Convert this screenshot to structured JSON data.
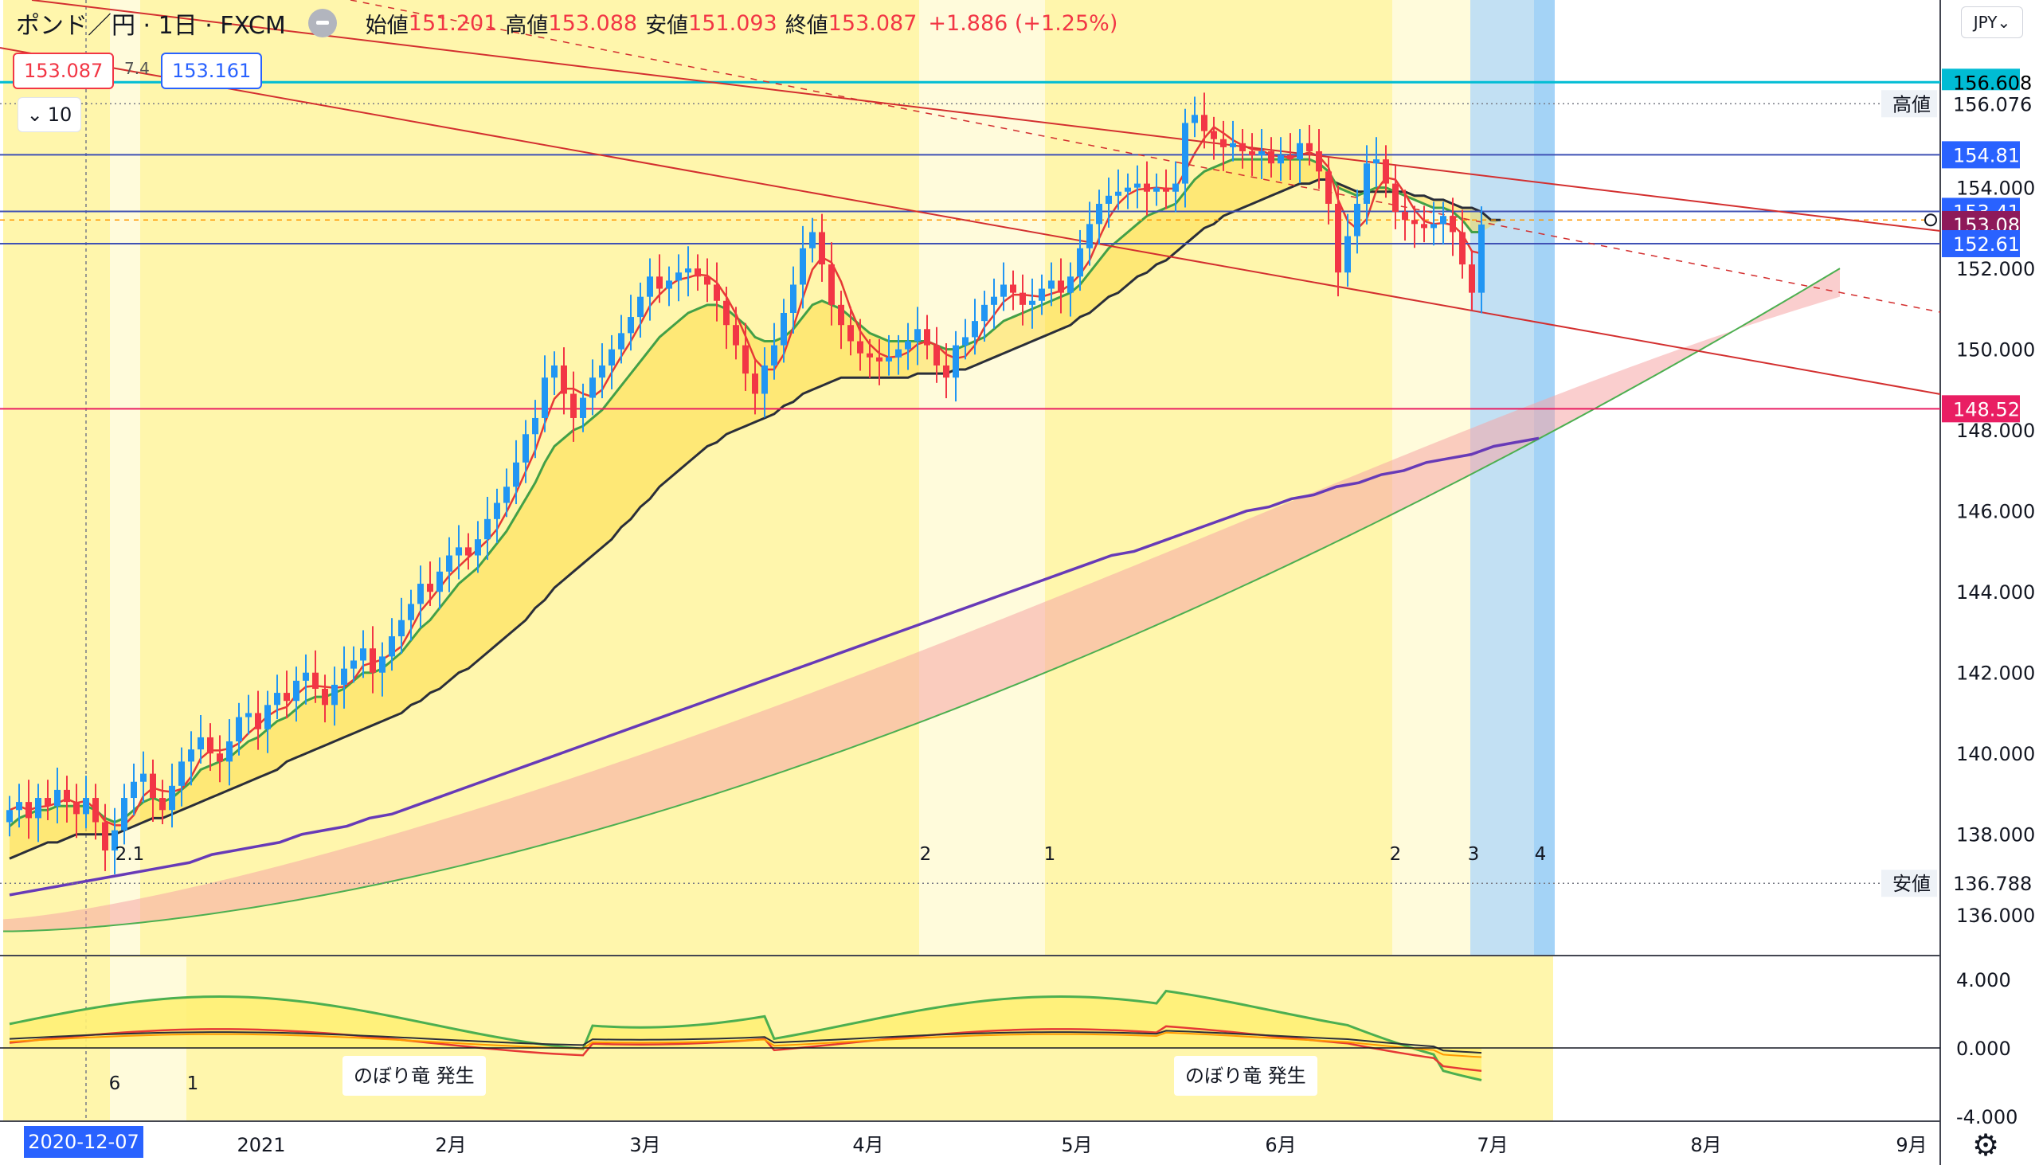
{
  "header": {
    "symbol": "ポンド／円 · 1日 · FXCM",
    "open_label": "始値",
    "open": "151.201",
    "high_label": "高値",
    "high": "153.088",
    "low_label": "安値",
    "low": "151.093",
    "close_label": "終値",
    "close": "153.087",
    "change": "+1.886 (+1.25%)"
  },
  "trade": {
    "sell": "153.087",
    "spread": "7.4",
    "buy": "153.161"
  },
  "collapse_label": "10",
  "currency": "JPY",
  "crosshair_date": "2020-12-07",
  "notes": [
    "のぼり竜 発生",
    "のぼり竜 発生"
  ],
  "colors": {
    "up": "#2196f3",
    "down": "#f23645",
    "bg_yellow": "#fff59d",
    "bg_blue": "#bbdefb",
    "sma_dark": "#2a2e39",
    "sma_purple": "#673ab7",
    "cloud": "#f6a6a6"
  },
  "chart_data": {
    "type": "line",
    "price_scale": {
      "range": [
        135.0,
        157.5
      ],
      "ticks": [
        136,
        138,
        140,
        142,
        144,
        146,
        148,
        150,
        152,
        154
      ]
    },
    "x_axis": {
      "start": "2020-12",
      "end": "2021-09",
      "labels": [
        "2021",
        "2月",
        "3月",
        "4月",
        "5月",
        "6月",
        "7月",
        "8月",
        "9月"
      ]
    },
    "oscillator_scale": {
      "ticks": [
        "4.000",
        "0.000",
        "-4.000"
      ]
    },
    "price_labels": [
      {
        "value": 156.608,
        "text": "156.608",
        "color": "#00bcd4",
        "text_color": "#000000"
      },
      {
        "value": 156.076,
        "text": "156.076",
        "tag": "高値",
        "color": "#ffffff",
        "text_color": "#131722"
      },
      {
        "value": 154.813,
        "text": "154.813",
        "color": "#2962ff",
        "text_color": "#ffffff"
      },
      {
        "value": 153.413,
        "text": "153.413",
        "color": "#2962ff",
        "text_color": "#ffffff"
      },
      {
        "value": 153.087,
        "text": "153.087",
        "color": "#8e1a5a",
        "text_color": "#ffffff"
      },
      {
        "value": 152.614,
        "text": "152.614",
        "color": "#2962ff",
        "text_color": "#ffffff"
      },
      {
        "value": 148.529,
        "text": "148.529",
        "color": "#e91e63",
        "text_color": "#ffffff"
      },
      {
        "value": 136.788,
        "text": "136.788",
        "tag": "安値",
        "color": "#ffffff",
        "text_color": "#131722"
      }
    ],
    "horizontal_lines": [
      {
        "value": 156.608,
        "color": "#00bcd4",
        "width": 3
      },
      {
        "value": 154.813,
        "color": "#3f51b5",
        "width": 2
      },
      {
        "value": 153.413,
        "color": "#3f51b5",
        "width": 2
      },
      {
        "value": 152.614,
        "color": "#3f51b5",
        "width": 2
      },
      {
        "value": 148.529,
        "color": "#e91e63",
        "width": 2
      }
    ],
    "dotted_lines": [
      156.076,
      136.788
    ],
    "event_markers": [
      "2",
      "1",
      "1",
      "2",
      "1",
      "2",
      "3",
      "4",
      "6",
      "1"
    ],
    "close_series": [
      138.6,
      138.8,
      138.4,
      138.9,
      138.7,
      139.1,
      138.8,
      138.5,
      138.9,
      138.3,
      137.6,
      138.1,
      138.9,
      139.3,
      139.5,
      138.9,
      138.6,
      139.2,
      139.8,
      140.1,
      140.4,
      140.0,
      139.8,
      140.3,
      140.9,
      141.0,
      140.6,
      141.2,
      141.5,
      141.3,
      141.8,
      142.0,
      141.6,
      141.2,
      141.7,
      142.1,
      142.3,
      142.6,
      142.0,
      142.4,
      142.9,
      143.3,
      143.7,
      144.2,
      144.0,
      144.5,
      144.9,
      145.1,
      144.9,
      145.3,
      145.8,
      146.2,
      146.6,
      147.2,
      147.9,
      148.3,
      149.3,
      149.6,
      148.9,
      148.3,
      148.8,
      149.3,
      149.6,
      150.0,
      150.4,
      150.8,
      151.3,
      151.8,
      151.5,
      151.7,
      151.9,
      152.0,
      151.8,
      151.6,
      151.2,
      150.6,
      150.1,
      149.4,
      148.9,
      149.6,
      150.1,
      150.9,
      151.6,
      152.5,
      152.9,
      152.1,
      151.1,
      150.6,
      150.2,
      149.9,
      149.8,
      149.7,
      149.8,
      150.0,
      150.2,
      150.5,
      150.1,
      149.6,
      149.3,
      150.1,
      150.3,
      150.7,
      151.1,
      151.3,
      151.6,
      151.4,
      151.1,
      151.2,
      151.5,
      151.7,
      151.4,
      151.8,
      152.5,
      153.1,
      153.6,
      153.8,
      153.9,
      154.0,
      154.1,
      153.9,
      154.0,
      153.9,
      154.1,
      155.6,
      155.8,
      155.4,
      155.2,
      155.0,
      155.1,
      154.9,
      154.8,
      154.9,
      154.6,
      154.8,
      154.7,
      155.1,
      154.9,
      154.4,
      153.6,
      151.9,
      152.8,
      153.6,
      154.6,
      154.7,
      154.1,
      153.4,
      153.2,
      153.1,
      153.0,
      153.1,
      153.3,
      152.9,
      152.1,
      151.4,
      153.087
    ],
    "ema_fast": [
      138.2,
      138.4,
      138.5,
      138.6,
      138.6,
      138.7,
      138.7,
      138.7,
      138.7,
      138.6,
      138.4,
      138.3,
      138.4,
      138.6,
      138.8,
      138.9,
      138.8,
      138.9,
      139.1,
      139.3,
      139.6,
      139.7,
      139.8,
      139.9,
      140.1,
      140.3,
      140.4,
      140.6,
      140.8,
      140.9,
      141.1,
      141.3,
      141.4,
      141.4,
      141.5,
      141.6,
      141.8,
      142.0,
      142.0,
      142.1,
      142.3,
      142.5,
      142.8,
      143.1,
      143.3,
      143.6,
      143.9,
      144.2,
      144.4,
      144.6,
      144.9,
      145.2,
      145.5,
      145.9,
      146.3,
      146.7,
      147.2,
      147.6,
      147.8,
      148.0,
      148.1,
      148.3,
      148.5,
      148.8,
      149.1,
      149.4,
      149.7,
      150.0,
      150.3,
      150.5,
      150.7,
      150.9,
      151.0,
      151.1,
      151.1,
      151.0,
      150.8,
      150.6,
      150.3,
      150.2,
      150.2,
      150.3,
      150.5,
      150.8,
      151.1,
      151.2,
      151.1,
      151.0,
      150.8,
      150.6,
      150.4,
      150.3,
      150.2,
      150.2,
      150.2,
      150.2,
      150.2,
      150.1,
      150.0,
      150.0,
      150.1,
      150.2,
      150.3,
      150.5,
      150.7,
      150.8,
      150.9,
      151.0,
      151.1,
      151.2,
      151.3,
      151.4,
      151.6,
      151.9,
      152.2,
      152.5,
      152.7,
      152.9,
      153.1,
      153.3,
      153.4,
      153.5,
      153.6,
      153.9,
      154.2,
      154.4,
      154.5,
      154.6,
      154.7,
      154.7,
      154.7,
      154.7,
      154.7,
      154.7,
      154.7,
      154.7,
      154.7,
      154.6,
      154.4,
      154.0,
      153.9,
      153.8,
      153.9,
      154.0,
      154.0,
      153.9,
      153.8,
      153.7,
      153.6,
      153.5,
      153.5,
      153.4,
      153.2,
      152.9,
      152.9
    ],
    "ema_slow": [
      137.4,
      137.5,
      137.6,
      137.7,
      137.8,
      137.8,
      137.9,
      138.0,
      138.0,
      138.0,
      138.0,
      138.0,
      138.1,
      138.2,
      138.3,
      138.4,
      138.4,
      138.5,
      138.6,
      138.7,
      138.8,
      138.9,
      139.0,
      139.1,
      139.2,
      139.3,
      139.4,
      139.5,
      139.6,
      139.8,
      139.9,
      140.0,
      140.1,
      140.2,
      140.3,
      140.4,
      140.5,
      140.6,
      140.7,
      140.8,
      140.9,
      141.0,
      141.2,
      141.3,
      141.5,
      141.6,
      141.8,
      142.0,
      142.1,
      142.3,
      142.5,
      142.7,
      142.9,
      143.1,
      143.3,
      143.6,
      143.8,
      144.1,
      144.3,
      144.5,
      144.7,
      144.9,
      145.1,
      145.3,
      145.6,
      145.8,
      146.1,
      146.3,
      146.6,
      146.8,
      147.0,
      147.2,
      147.4,
      147.6,
      147.7,
      147.9,
      148.0,
      148.1,
      148.2,
      148.3,
      148.4,
      148.6,
      148.7,
      148.9,
      149.0,
      149.1,
      149.2,
      149.3,
      149.3,
      149.3,
      149.3,
      149.3,
      149.3,
      149.3,
      149.3,
      149.4,
      149.4,
      149.4,
      149.4,
      149.5,
      149.5,
      149.6,
      149.7,
      149.8,
      149.9,
      150.0,
      150.1,
      150.2,
      150.3,
      150.4,
      150.5,
      150.6,
      150.8,
      150.9,
      151.1,
      151.3,
      151.4,
      151.6,
      151.8,
      151.9,
      152.1,
      152.2,
      152.4,
      152.6,
      152.8,
      153.0,
      153.1,
      153.3,
      153.4,
      153.5,
      153.6,
      153.7,
      153.8,
      153.9,
      154.0,
      154.1,
      154.1,
      154.2,
      154.2,
      154.1,
      154.0,
      153.9,
      153.9,
      153.9,
      153.9,
      153.9,
      153.9,
      153.8,
      153.8,
      153.7,
      153.7,
      153.6,
      153.5,
      153.5,
      153.4,
      153.2,
      153.2
    ],
    "sma_200_like": [
      136.5,
      136.6,
      136.7,
      136.8,
      136.9,
      137.0,
      137.1,
      137.2,
      137.3,
      137.5,
      137.6,
      137.7,
      137.8,
      138.0,
      138.1,
      138.2,
      138.4,
      138.5,
      138.7,
      138.9,
      139.1,
      139.3,
      139.5,
      139.7,
      139.9,
      140.1,
      140.3,
      140.5,
      140.7,
      140.9,
      141.1,
      141.3,
      141.5,
      141.7,
      141.9,
      142.1,
      142.3,
      142.5,
      142.7,
      142.9,
      143.1,
      143.3,
      143.5,
      143.7,
      143.9,
      144.1,
      144.3,
      144.5,
      144.7,
      144.9,
      145.0,
      145.2,
      145.4,
      145.6,
      145.8,
      146.0,
      146.1,
      146.3,
      146.4,
      146.6,
      146.7,
      146.9,
      147.0,
      147.2,
      147.3,
      147.4,
      147.6,
      147.7,
      147.8
    ],
    "sma_200_span": [
      0,
      160
    ]
  }
}
